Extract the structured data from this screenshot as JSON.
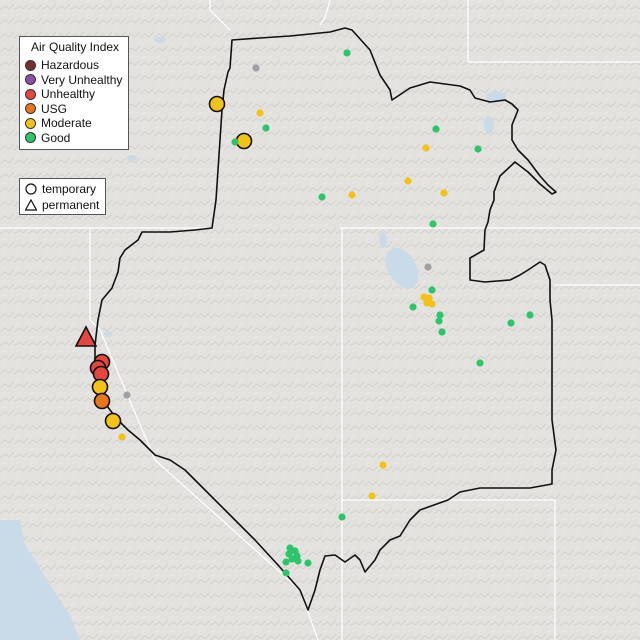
{
  "legend": {
    "title": "Air Quality Index",
    "categories": [
      {
        "label": "Hazardous",
        "color": "#7a2e2e"
      },
      {
        "label": "Very Unhealthy",
        "color": "#8e4fa8"
      },
      {
        "label": "Unhealthy",
        "color": "#e4473f"
      },
      {
        "label": "USG",
        "color": "#e8761e"
      },
      {
        "label": "Moderate",
        "color": "#f2c219"
      },
      {
        "label": "Good",
        "color": "#2ec46a"
      }
    ],
    "types": [
      {
        "label": "temporary",
        "symbol": "circle-icon"
      },
      {
        "label": "permanent",
        "symbol": "triangle-icon"
      }
    ]
  },
  "colors": {
    "land": "#e4e2df",
    "water": "#c9dbe8",
    "boundary": "#111111",
    "state_lines": "#ffffff",
    "inactive_monitor": "#9ea0a3"
  },
  "monitors": [
    {
      "aqi": "Moderate",
      "type": "temporary",
      "size": "large",
      "lat": 44.75,
      "lon": -123.4
    },
    {
      "aqi": "Moderate",
      "type": "temporary",
      "size": "large",
      "lat": 44.35,
      "lon": -122.75
    }
  ]
}
